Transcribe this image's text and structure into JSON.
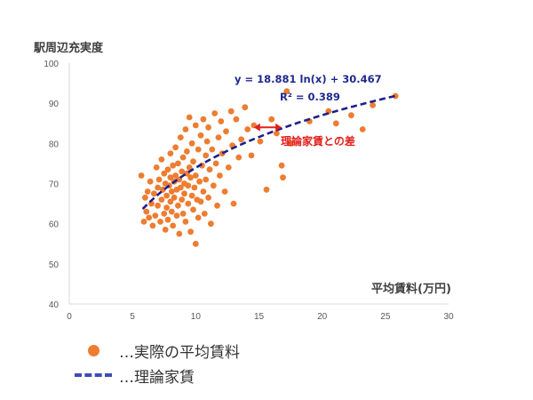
{
  "chart_data": {
    "type": "scatter",
    "title": "",
    "xlabel": "平均賃料(万円)",
    "ylabel": "駅周辺充実度",
    "xlim": [
      0,
      30
    ],
    "ylim": [
      40,
      100
    ],
    "x_ticks": [
      "0",
      "5",
      "10",
      "15",
      "20",
      "25",
      "30"
    ],
    "y_ticks": [
      "40",
      "50",
      "60",
      "70",
      "80",
      "90",
      "100"
    ],
    "grid": false,
    "trendline": {
      "type": "logarithmic",
      "a": 18.881,
      "b": 30.467,
      "x_range": [
        5.8,
        25.8
      ],
      "equation": "y = 18.881 ln(x) + 30.467",
      "r_squared": "R² = 0.389"
    },
    "annotation": {
      "text": "理論家賃との差",
      "arrow_x": [
        14.6,
        16.8
      ],
      "arrow_y": 84.0
    },
    "series": [
      {
        "name": "実際の平均賃料",
        "points": [
          [
            5.7,
            72.0
          ],
          [
            5.9,
            60.5
          ],
          [
            6.0,
            66.5
          ],
          [
            6.1,
            63.0
          ],
          [
            6.2,
            68.0
          ],
          [
            6.3,
            61.5
          ],
          [
            6.4,
            70.5
          ],
          [
            6.5,
            65.0
          ],
          [
            6.6,
            59.5
          ],
          [
            6.7,
            67.5
          ],
          [
            6.8,
            62.0
          ],
          [
            6.9,
            74.0
          ],
          [
            7.0,
            69.0
          ],
          [
            7.0,
            64.5
          ],
          [
            7.1,
            71.0
          ],
          [
            7.2,
            60.5
          ],
          [
            7.3,
            66.0
          ],
          [
            7.3,
            76.0
          ],
          [
            7.4,
            68.5
          ],
          [
            7.5,
            62.5
          ],
          [
            7.5,
            72.5
          ],
          [
            7.6,
            58.5
          ],
          [
            7.6,
            70.0
          ],
          [
            7.7,
            64.0
          ],
          [
            7.7,
            67.0
          ],
          [
            7.8,
            73.5
          ],
          [
            7.8,
            61.0
          ],
          [
            7.9,
            69.5
          ],
          [
            8.0,
            65.5
          ],
          [
            8.0,
            71.5
          ],
          [
            8.0,
            77.5
          ],
          [
            8.1,
            63.0
          ],
          [
            8.1,
            68.0
          ],
          [
            8.2,
            74.5
          ],
          [
            8.2,
            59.5
          ],
          [
            8.3,
            70.5
          ],
          [
            8.3,
            66.5
          ],
          [
            8.4,
            72.0
          ],
          [
            8.4,
            79.0
          ],
          [
            8.5,
            62.0
          ],
          [
            8.5,
            68.5
          ],
          [
            8.6,
            75.0
          ],
          [
            8.6,
            64.5
          ],
          [
            8.7,
            71.0
          ],
          [
            8.7,
            57.5
          ],
          [
            8.8,
            69.0
          ],
          [
            8.8,
            81.5
          ],
          [
            8.9,
            66.0
          ],
          [
            8.9,
            73.0
          ],
          [
            9.0,
            62.5
          ],
          [
            9.0,
            76.5
          ],
          [
            9.1,
            70.0
          ],
          [
            9.1,
            67.5
          ],
          [
            9.2,
            83.5
          ],
          [
            9.2,
            60.5
          ],
          [
            9.3,
            72.5
          ],
          [
            9.3,
            78.0
          ],
          [
            9.4,
            65.0
          ],
          [
            9.4,
            69.5
          ],
          [
            9.5,
            74.0
          ],
          [
            9.5,
            86.5
          ],
          [
            9.6,
            58.0
          ],
          [
            9.6,
            71.5
          ],
          [
            9.7,
            67.0
          ],
          [
            9.7,
            80.0
          ],
          [
            9.8,
            63.5
          ],
          [
            9.8,
            75.5
          ],
          [
            9.9,
            69.0
          ],
          [
            10.0,
            55.0
          ],
          [
            10.0,
            72.0
          ],
          [
            10.0,
            84.5
          ],
          [
            10.1,
            66.0
          ],
          [
            10.2,
            78.5
          ],
          [
            10.2,
            61.5
          ],
          [
            10.3,
            70.5
          ],
          [
            10.4,
            82.0
          ],
          [
            10.4,
            65.5
          ],
          [
            10.5,
            74.5
          ],
          [
            10.6,
            68.0
          ],
          [
            10.6,
            86.0
          ],
          [
            10.7,
            62.5
          ],
          [
            10.8,
            77.0
          ],
          [
            10.8,
            71.0
          ],
          [
            10.9,
            80.5
          ],
          [
            11.0,
            66.5
          ],
          [
            11.0,
            84.0
          ],
          [
            11.1,
            73.5
          ],
          [
            11.2,
            60.0
          ],
          [
            11.3,
            78.5
          ],
          [
            11.4,
            69.5
          ],
          [
            11.5,
            87.5
          ],
          [
            11.6,
            75.0
          ],
          [
            11.7,
            64.5
          ],
          [
            11.8,
            81.5
          ],
          [
            11.9,
            72.0
          ],
          [
            12.0,
            85.5
          ],
          [
            12.1,
            77.5
          ],
          [
            12.3,
            68.0
          ],
          [
            12.4,
            83.0
          ],
          [
            12.6,
            74.0
          ],
          [
            12.8,
            88.0
          ],
          [
            12.9,
            79.5
          ],
          [
            13.0,
            65.0
          ],
          [
            13.2,
            86.0
          ],
          [
            13.4,
            76.5
          ],
          [
            13.6,
            81.0
          ],
          [
            13.9,
            89.0
          ],
          [
            14.1,
            83.5
          ],
          [
            14.4,
            77.0
          ],
          [
            14.6,
            84.5
          ],
          [
            15.1,
            80.5
          ],
          [
            15.6,
            68.5
          ],
          [
            16.0,
            86.0
          ],
          [
            16.4,
            82.5
          ],
          [
            16.8,
            74.5
          ],
          [
            16.9,
            71.5
          ],
          [
            17.2,
            93.0
          ],
          [
            17.5,
            80.0
          ],
          [
            19.0,
            85.5
          ],
          [
            20.5,
            88.0
          ],
          [
            21.1,
            85.0
          ],
          [
            22.3,
            87.0
          ],
          [
            23.2,
            83.5
          ],
          [
            24.0,
            89.5
          ],
          [
            25.8,
            91.8
          ]
        ]
      }
    ],
    "legend": [
      {
        "marker": "circle",
        "color": "#ed7d31",
        "label": "…実際の平均賃料"
      },
      {
        "marker": "dash",
        "color": "#3d4bb8",
        "label": "…理論家賃"
      }
    ],
    "colors": {
      "points": "#ed7d31",
      "trendline": "#1f1f8c",
      "annotation": "#e0201c",
      "axis": "#d9d9d9"
    }
  }
}
